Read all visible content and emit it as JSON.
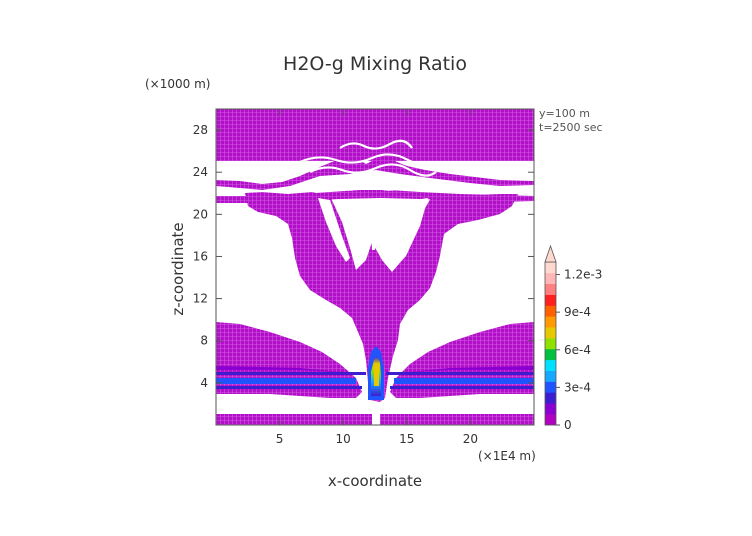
{
  "chart_data": {
    "type": "heatmap",
    "title": "H2O-g Mixing Ratio",
    "xlabel": "x-coordinate",
    "ylabel": "z-coordinate",
    "x_unit": "(×1E4 m)",
    "y_unit": "(×1000 m)",
    "annotations": [
      "y=100 m",
      "t=2500 sec"
    ],
    "xlim": [
      0,
      25
    ],
    "ylim": [
      0,
      30
    ],
    "x_ticks": [
      5,
      10,
      15,
      20
    ],
    "y_ticks": [
      4,
      8,
      12,
      16,
      20,
      24,
      28
    ],
    "colorbar": {
      "labels": [
        "0",
        "3e-4",
        "6e-4",
        "9e-4",
        "1.2e-3"
      ],
      "values": [
        0,
        0.0003,
        0.0006,
        0.0009,
        0.0012
      ],
      "vmin": 0,
      "vmax": 0.0013,
      "extend": "max",
      "colors": [
        "#b000c0",
        "#8a00d0",
        "#3c1ed0",
        "#1f54ff",
        "#16a8ff",
        "#00e0ff",
        "#00c040",
        "#90e000",
        "#e8c800",
        "#ff9a00",
        "#ff6000",
        "#ff2020",
        "#ff8080",
        "#ffb6b6",
        "#ffd8d0"
      ]
    },
    "grid": false
  }
}
